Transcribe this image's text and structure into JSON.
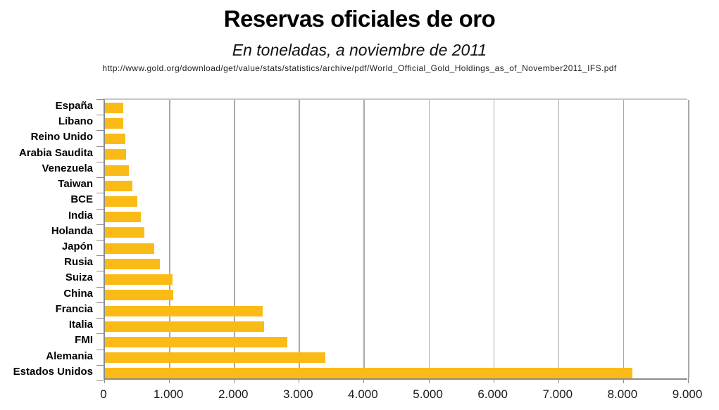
{
  "header": {
    "title": "Reservas oficiales de oro",
    "subtitle": "En toneladas, a noviembre de 2011",
    "source_url": "http://www.gold.org/download/get/value/stats/statistics/archive/pdf/World_Official_Gold_Holdings_as_of_November2011_IFS.pdf"
  },
  "chart_data": {
    "type": "bar",
    "orientation": "horizontal",
    "title": "Reservas oficiales de oro",
    "subtitle": "En toneladas, a noviembre de 2011",
    "source": "http://www.gold.org/download/get/value/stats/statistics/archive/pdf/World_Official_Gold_Holdings_as_of_November2011_IFS.pdf",
    "unit": "toneladas",
    "categories": [
      "España",
      "Líbano",
      "Reino Unido",
      "Arabia Saudita",
      "Venezuela",
      "Taiwan",
      "BCE",
      "India",
      "Holanda",
      "Japón",
      "Rusia",
      "Suiza",
      "China",
      "Francia",
      "Italia",
      "FMI",
      "Alemania",
      "Estados Unidos"
    ],
    "values": [
      281.6,
      286.8,
      310.3,
      322.9,
      365.8,
      423.6,
      502.1,
      557.7,
      612.5,
      765.2,
      851.5,
      1040.1,
      1054.1,
      2435.4,
      2451.8,
      2814.0,
      3401.0,
      8133.5
    ],
    "xlabel": "",
    "ylabel": "",
    "xlim": [
      0,
      9000
    ],
    "x_ticks": [
      0,
      1000,
      2000,
      3000,
      4000,
      5000,
      6000,
      7000,
      8000,
      9000
    ],
    "x_tick_labels": [
      "0",
      "1.000",
      "2.000",
      "3.000",
      "4.000",
      "5.000",
      "6.000",
      "7.000",
      "8.000",
      "9.000"
    ],
    "grid": "vertical",
    "legend": "none",
    "colors": {
      "bar": "#FBBB16",
      "gridline": "#a9a9a9",
      "axis": "#8c8c8c",
      "plot_border": "#c6c6c6",
      "text": "#000000"
    }
  }
}
